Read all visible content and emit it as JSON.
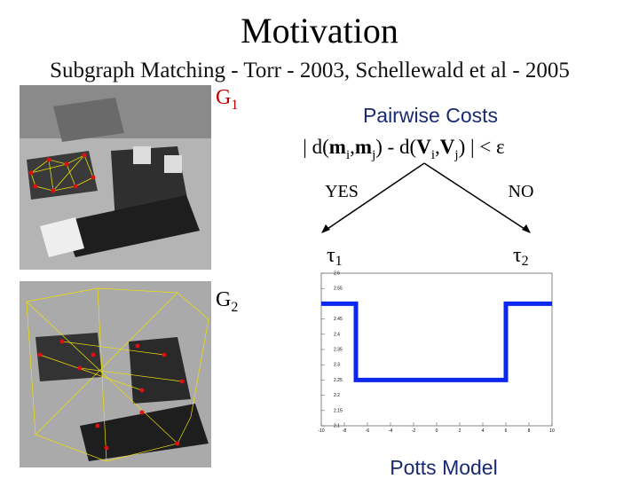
{
  "title": "Motivation",
  "subtitle": "Subgraph Matching - Torr - 2003, Schellewald et al - 2005",
  "g1": {
    "letter": "G",
    "sub": "1"
  },
  "g2": {
    "letter": "G",
    "sub": "2"
  },
  "pairwise": "Pairwise Costs",
  "formula": [
    "| d(",
    "m",
    "i",
    ",",
    "m",
    "j",
    ") - d(",
    "V",
    "i",
    ",",
    "V",
    "j",
    ") | < ε"
  ],
  "yes": "YES",
  "no": "NO",
  "tau1": {
    "letter": "τ",
    "sub": "1"
  },
  "tau2": {
    "letter": "τ",
    "sub": "2"
  },
  "caption": "Potts Model",
  "chart_data": {
    "type": "line",
    "x": [
      -10,
      -7,
      -7,
      6,
      6,
      10
    ],
    "values": [
      2.5,
      2.5,
      2.25,
      2.25,
      2.5,
      2.5
    ],
    "color": "#0a28f0",
    "xlim": [
      -10,
      10
    ],
    "xticks": [
      -10,
      -8,
      -6,
      -4,
      -2,
      0,
      2,
      4,
      6,
      8,
      10
    ],
    "ylim": [
      2.1,
      2.6
    ],
    "yticks": [
      2.1,
      2.15,
      2.2,
      2.25,
      2.3,
      2.35,
      2.4,
      2.45,
      2.5,
      2.55,
      2.6
    ],
    "grid": false
  }
}
